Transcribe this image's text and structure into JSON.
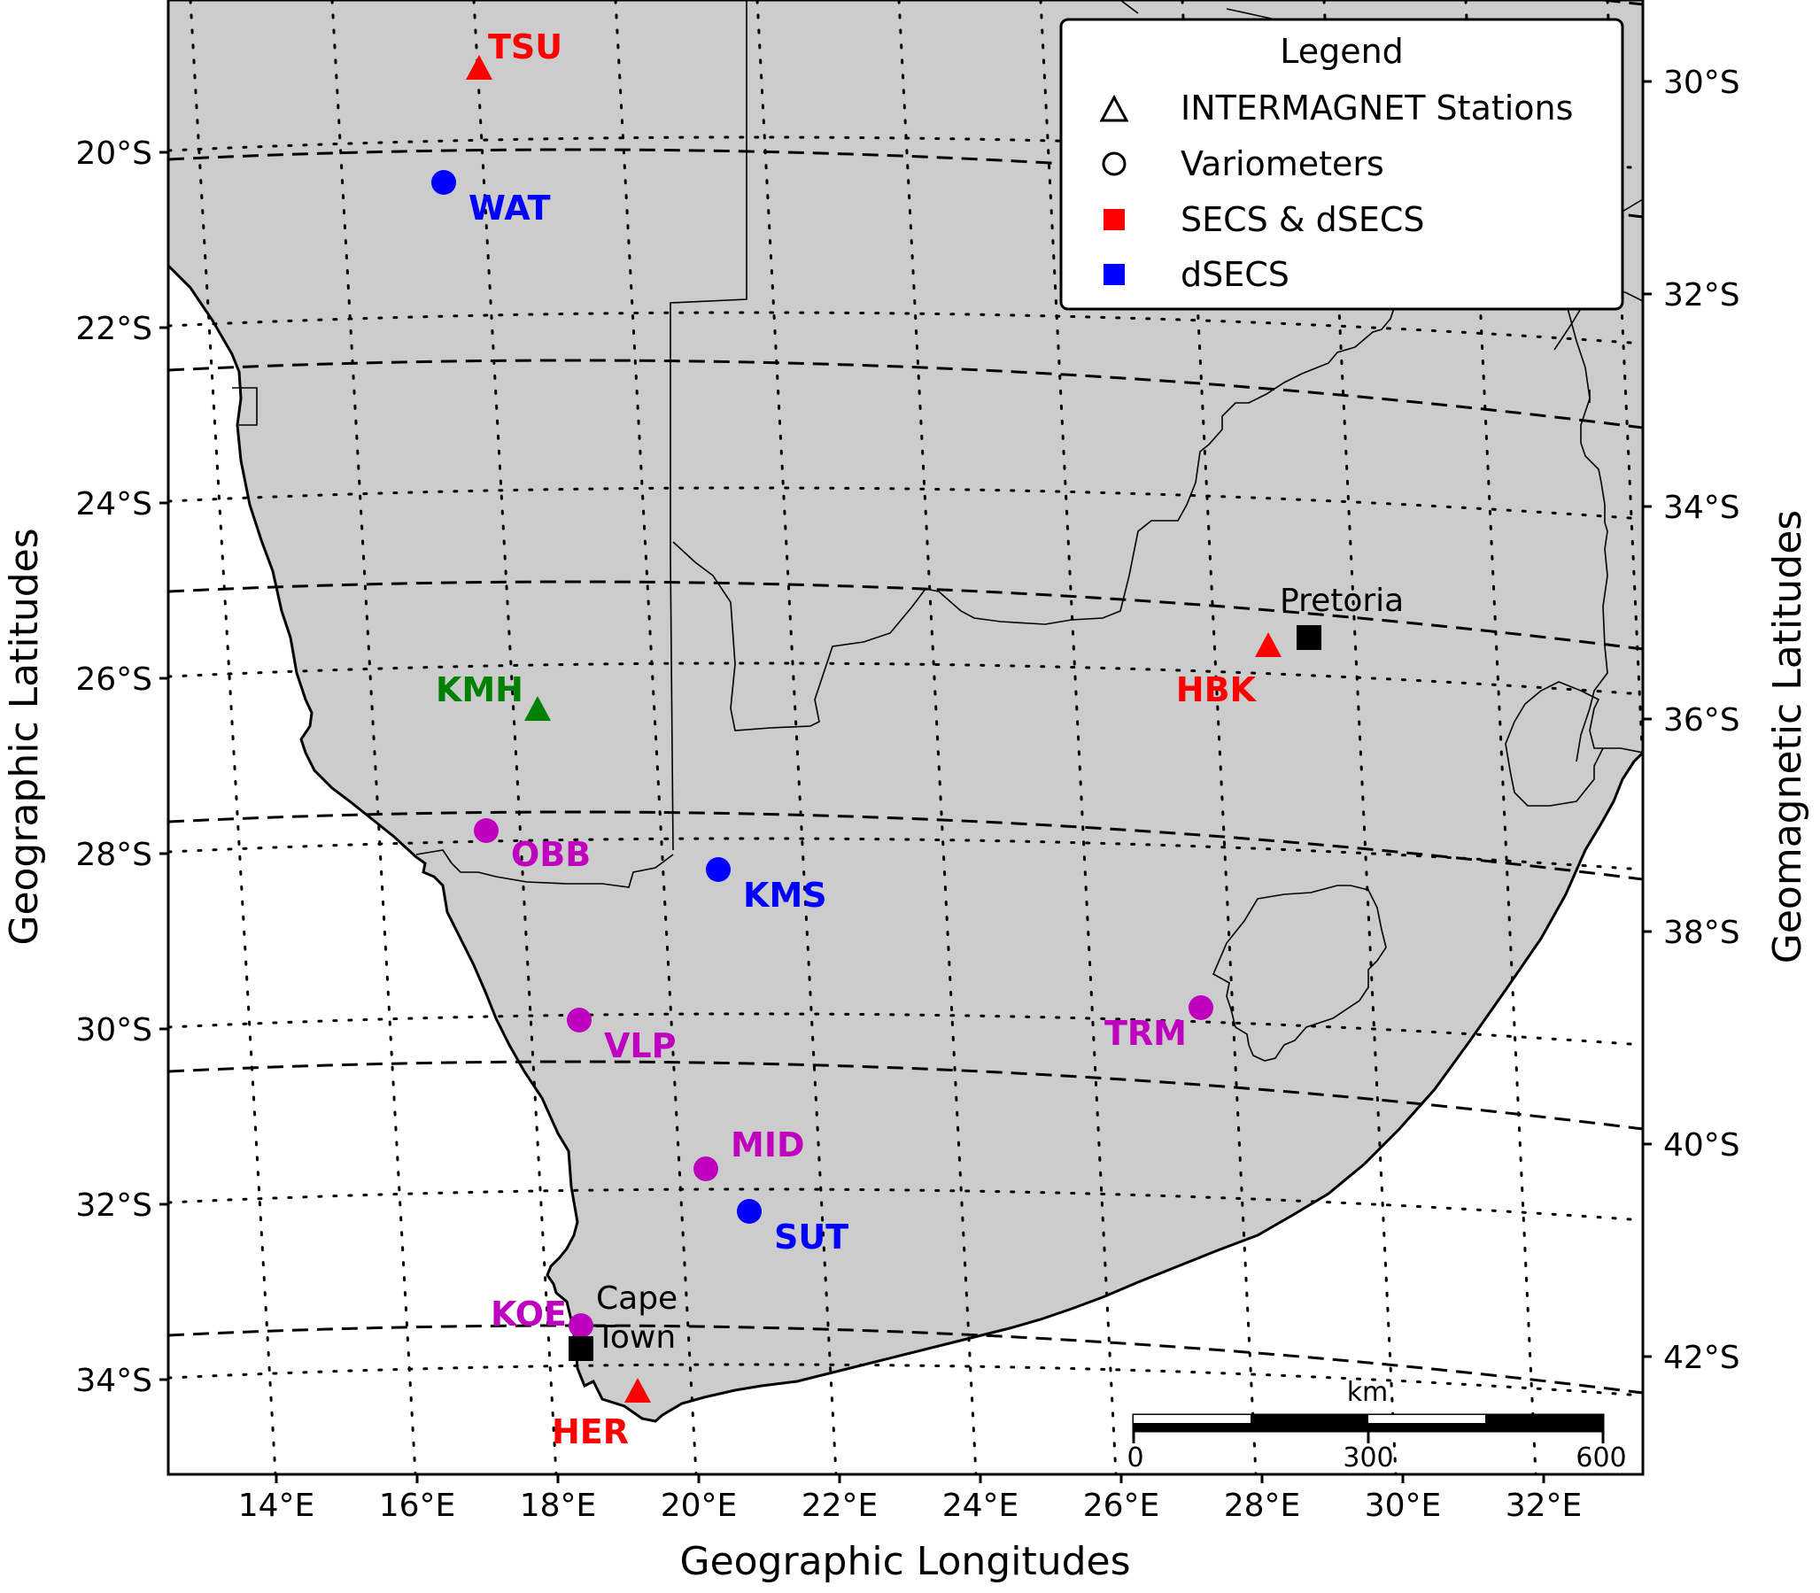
{
  "axes": {
    "x_label": "Geographic Longitudes",
    "y_left_label": "Geographic Latitudes",
    "y_right_label": "Geomagnetic Latitudes",
    "lon_ticks": [
      "14°E",
      "16°E",
      "18°E",
      "20°E",
      "22°E",
      "24°E",
      "26°E",
      "28°E",
      "30°E",
      "32°E"
    ],
    "lat_ticks": [
      "20°S",
      "22°S",
      "24°S",
      "26°S",
      "28°S",
      "30°S",
      "32°S",
      "34°S"
    ],
    "geomag_ticks": [
      "30°S",
      "32°S",
      "34°S",
      "36°S",
      "38°S",
      "40°S",
      "42°S"
    ]
  },
  "legend": {
    "title": "Legend",
    "items": [
      {
        "label": "INTERMAGNET Stations",
        "symbol": "triangle-open"
      },
      {
        "label": "Variometers",
        "symbol": "circle-open"
      },
      {
        "label": "SECS & dSECS",
        "symbol": "square",
        "color": "#ff0000"
      },
      {
        "label": "dSECS",
        "symbol": "square",
        "color": "#0000ff"
      }
    ]
  },
  "stations": [
    {
      "code": "TSU",
      "lon": 17.6,
      "lat": -19.2,
      "type": "triangle",
      "color": "#ff0000"
    },
    {
      "code": "WAT",
      "lon": 17.0,
      "lat": -20.3,
      "type": "circle",
      "color": "#0000ff"
    },
    {
      "code": "KMH",
      "lon": 18.1,
      "lat": -26.5,
      "type": "triangle",
      "color": "#008000"
    },
    {
      "code": "HBK",
      "lon": 27.7,
      "lat": -25.9,
      "type": "triangle",
      "color": "#ff0000"
    },
    {
      "code": "OBB",
      "lon": 17.5,
      "lat": -28.0,
      "type": "circle",
      "color": "#bf00bf"
    },
    {
      "code": "KMS",
      "lon": 20.8,
      "lat": -28.4,
      "type": "circle",
      "color": "#0000ff"
    },
    {
      "code": "VLP",
      "lon": 18.7,
      "lat": -30.0,
      "type": "circle",
      "color": "#bf00bf"
    },
    {
      "code": "TRM",
      "lon": 27.2,
      "lat": -30.1,
      "type": "circle",
      "color": "#bf00bf"
    },
    {
      "code": "MID",
      "lon": 20.2,
      "lat": -31.6,
      "type": "circle",
      "color": "#bf00bf"
    },
    {
      "code": "SUT",
      "lon": 20.8,
      "lat": -32.4,
      "type": "circle",
      "color": "#0000ff"
    },
    {
      "code": "KOE",
      "lon": 18.4,
      "lat": -33.7,
      "type": "circle",
      "color": "#bf00bf"
    },
    {
      "code": "HER",
      "lon": 19.2,
      "lat": -34.4,
      "type": "triangle",
      "color": "#ff0000"
    }
  ],
  "cities": [
    {
      "name": "Pretoria",
      "lines": [
        "Pretoria"
      ],
      "lon": 28.2,
      "lat": -25.7
    },
    {
      "name": "Cape Town",
      "lines": [
        "Cape",
        "Town"
      ],
      "lon": 18.4,
      "lat": -33.9
    }
  ],
  "scale_bar": {
    "unit": "km",
    "labels": [
      "0",
      "300",
      "600"
    ]
  }
}
